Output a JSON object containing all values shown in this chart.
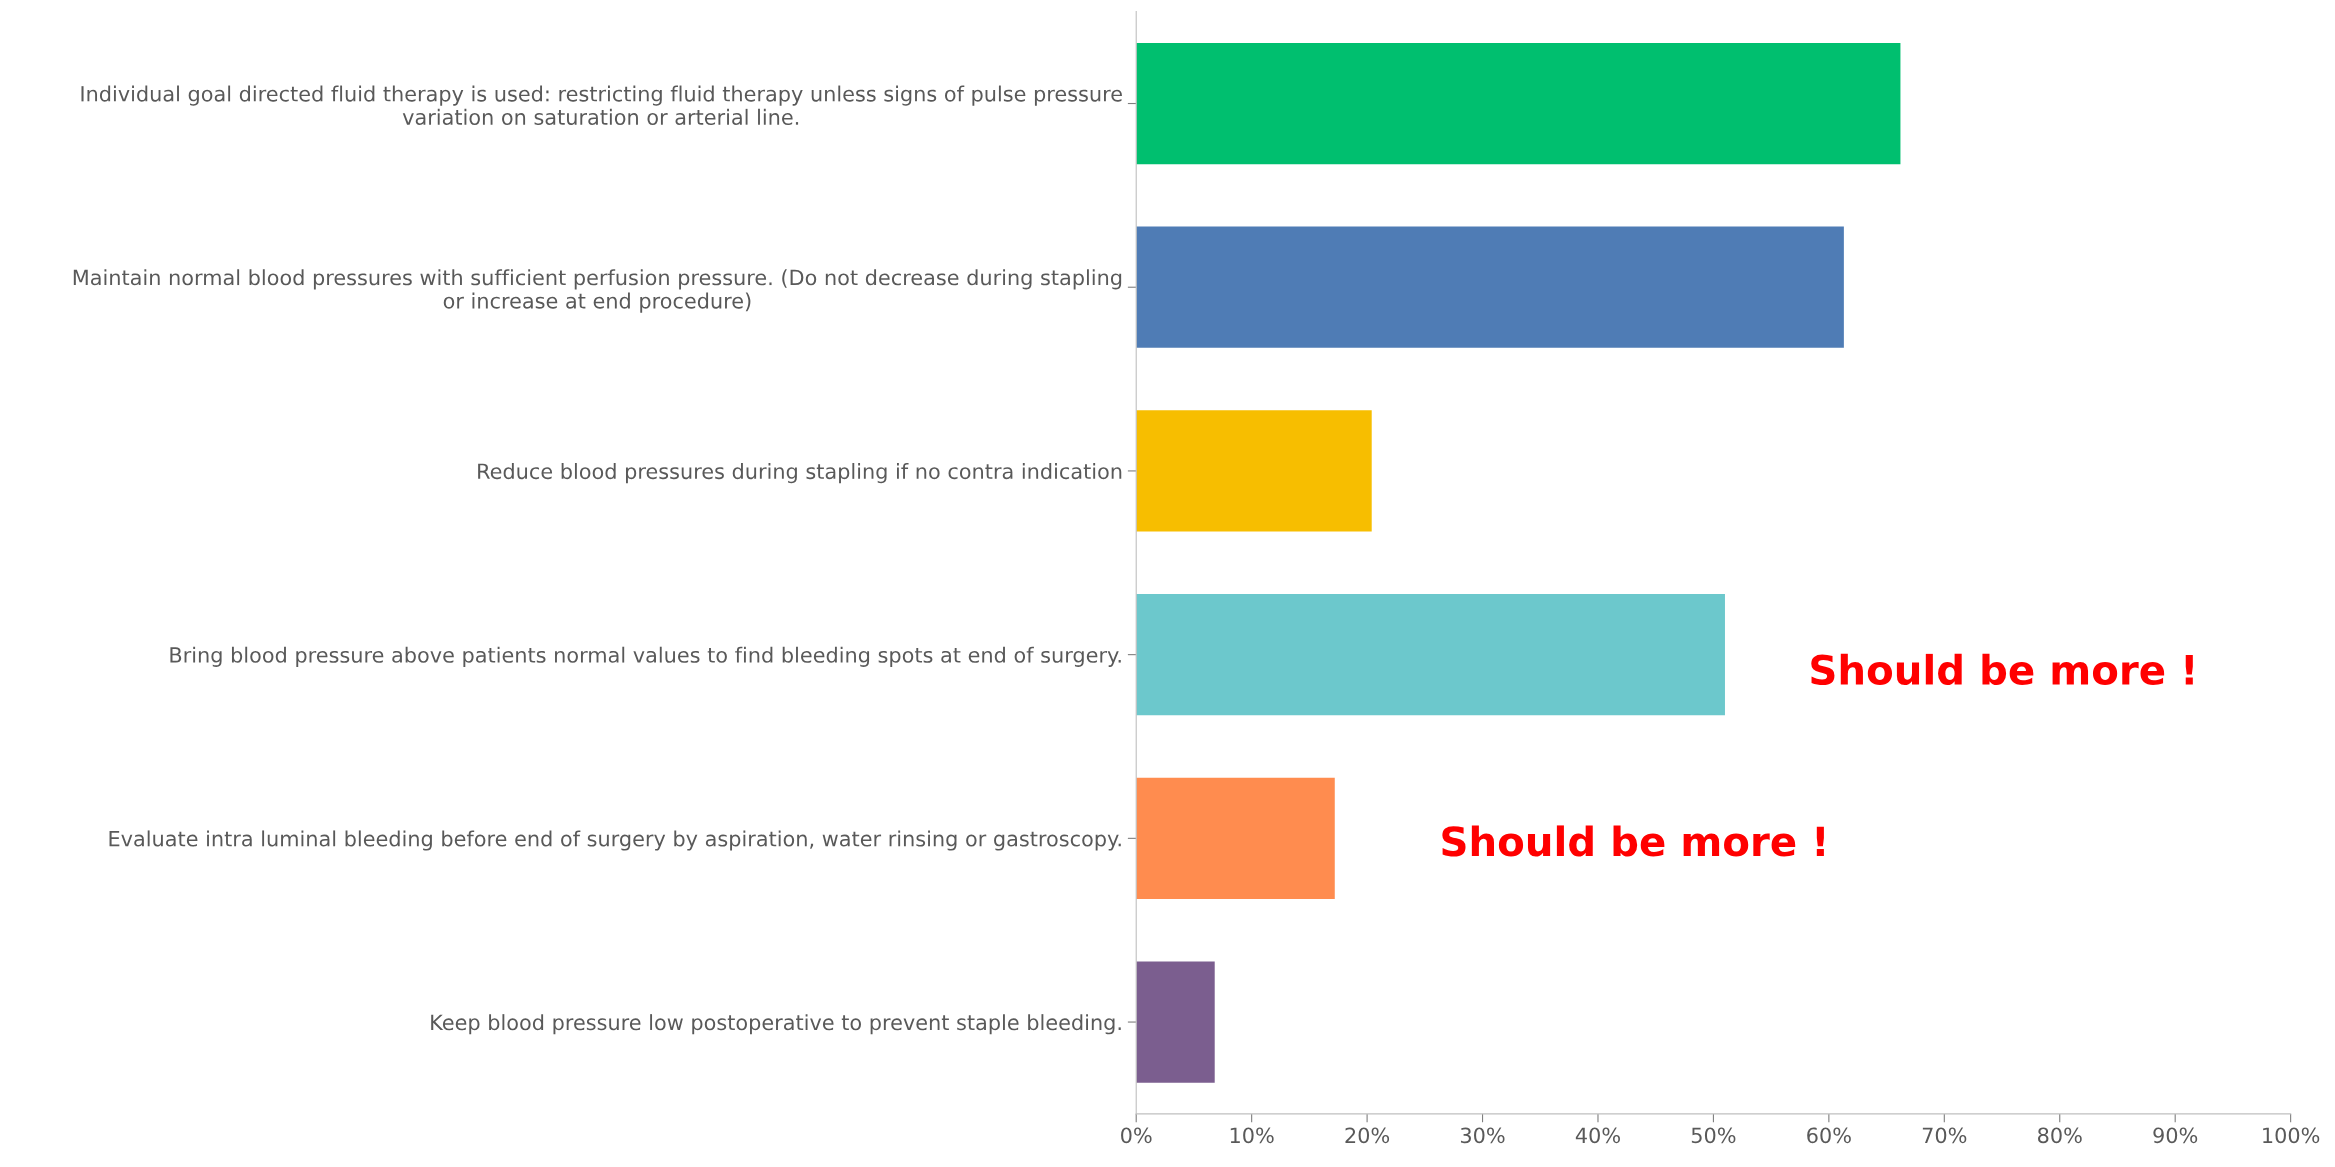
{
  "chart_data": {
    "type": "bar",
    "orientation": "horizontal",
    "categories": [
      "Individual goal directed fluid therapy is used: restricting fluid therapy unless signs of pulse pressure\nvariation on saturation or arterial line.",
      "Maintain normal blood pressures with sufficient perfusion pressure. (Do not decrease during stapling\nor increase at end procedure)",
      "Reduce blood pressures during stapling if no contra indication",
      "Bring blood pressure above patients normal values to find bleeding spots at end of surgery.",
      "Evaluate intra luminal bleeding before end of surgery by aspiration, water rinsing or gastroscopy.",
      "Keep blood pressure low postoperative to prevent staple bleeding."
    ],
    "values": [
      0.662,
      0.613,
      0.204,
      0.51,
      0.172,
      0.068
    ],
    "colors": [
      "#00bf6f",
      "#4f7cb5",
      "#f7be00",
      "#6cc8cc",
      "#ff8c4f",
      "#7b5e8f"
    ],
    "xlim": [
      0,
      1
    ],
    "xticks": [
      {
        "value": 0,
        "label": "0%"
      },
      {
        "value": 0.1,
        "label": "10%"
      },
      {
        "value": 0.2,
        "label": "20%"
      },
      {
        "value": 0.3,
        "label": "30%"
      },
      {
        "value": 0.4,
        "label": "40%"
      },
      {
        "value": 0.5,
        "label": "50%"
      },
      {
        "value": 0.6,
        "label": "60%"
      },
      {
        "value": 0.7,
        "label": "70%"
      },
      {
        "value": 0.8,
        "label": "80%"
      },
      {
        "value": 0.9,
        "label": "90%"
      },
      {
        "value": 1,
        "label": "100%"
      }
    ],
    "grid": false,
    "legend": false,
    "annotations": [
      "Should be more !",
      "Should be more !"
    ]
  }
}
